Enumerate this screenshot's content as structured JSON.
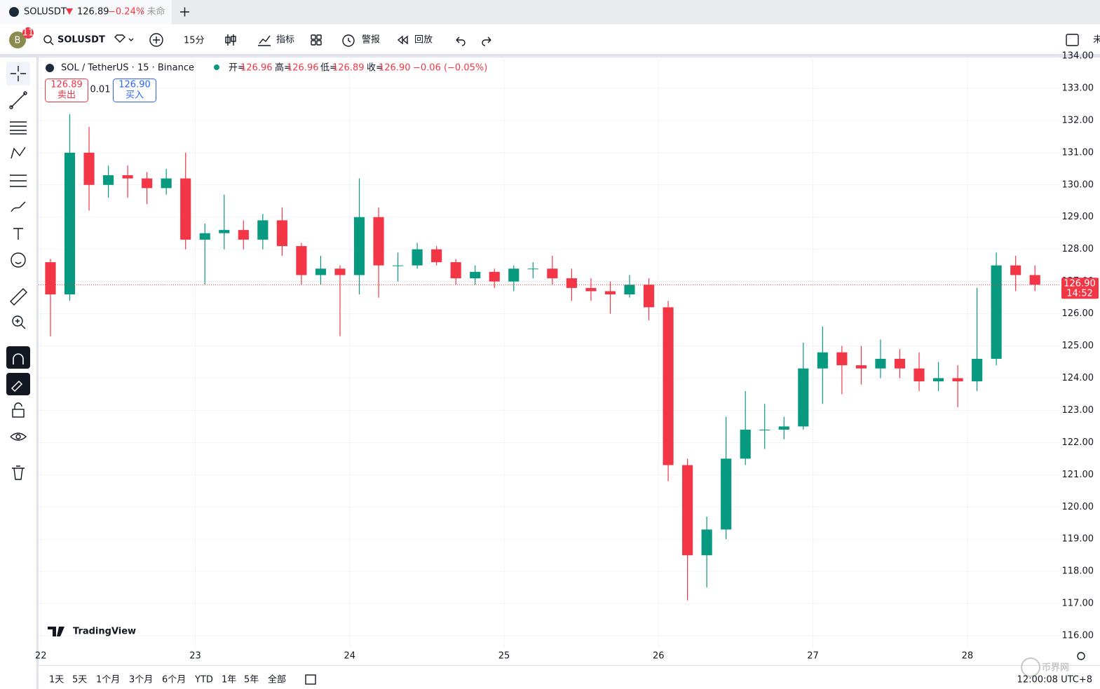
{
  "tab": {
    "symbol": "SOLUSDT",
    "price": "126.89",
    "change": "−0.24%",
    "title": "/ 未命"
  },
  "toolbar": {
    "avatar": "B",
    "badge": "11",
    "symbol": "SOLUSDT",
    "interval": "15分",
    "indicators": "指标",
    "alert": "警报",
    "replay": "回放",
    "right_text": "未"
  },
  "legend": {
    "title": "SOL / TetherUS · 15 · Binance",
    "open_label": "开=",
    "open": "126.96",
    "high_label": "高=",
    "high": "126.96",
    "low_label": "低=",
    "low": "126.89",
    "close_label": "收=",
    "close": "126.90",
    "change": "−0.06 (−0.05%)"
  },
  "trade": {
    "sell_price": "126.89",
    "sell": "卖出",
    "spread": "0.01",
    "buy_price": "126.90",
    "buy": "买入"
  },
  "watermark": "TradingView",
  "chart_data": {
    "type": "candlestick",
    "up_color": "#089981",
    "down_color": "#f23645",
    "grid": true,
    "x": [
      22.0625,
      22.1875,
      22.3125,
      22.4375,
      22.5625,
      22.6875,
      22.8125,
      22.9375,
      23.0625,
      23.1875,
      23.3125,
      23.4375,
      23.5625,
      23.6875,
      23.8125,
      23.9375,
      24.0625,
      24.1875,
      24.3125,
      24.4375,
      24.5625,
      24.6875,
      24.8125,
      24.9375,
      25.0625,
      25.1875,
      25.3125,
      25.4375,
      25.5625,
      25.6875,
      25.8125,
      25.9375,
      26.0625,
      26.1875,
      26.3125,
      26.4375,
      26.5625,
      26.6875,
      26.8125,
      26.9375,
      27.0625,
      27.1875,
      27.3125,
      27.4375,
      27.5625,
      27.6875,
      27.8125,
      27.9375,
      28.0625,
      28.1875,
      28.3125,
      28.4375
    ],
    "open": [
      127.6,
      126.6,
      131.0,
      130.0,
      130.3,
      130.2,
      129.9,
      130.2,
      128.3,
      128.5,
      128.6,
      128.3,
      128.9,
      128.1,
      127.2,
      127.4,
      127.2,
      129.0,
      127.5,
      127.5,
      128.0,
      127.6,
      127.1,
      127.3,
      127.0,
      127.4,
      127.4,
      127.1,
      126.8,
      126.7,
      126.6,
      126.9,
      126.2,
      121.3,
      118.5,
      119.3,
      121.5,
      122.4,
      122.4,
      122.5,
      124.3,
      124.8,
      124.4,
      124.3,
      124.6,
      124.3,
      123.9,
      124.0,
      123.9,
      124.6,
      127.5,
      127.2
    ],
    "high": [
      127.7,
      132.2,
      131.8,
      130.6,
      130.6,
      130.4,
      130.5,
      131.0,
      128.8,
      129.7,
      128.9,
      129.1,
      129.3,
      128.2,
      127.8,
      127.5,
      130.2,
      129.3,
      127.9,
      128.2,
      128.1,
      127.7,
      127.5,
      127.4,
      127.5,
      127.6,
      127.8,
      127.4,
      127.1,
      127.0,
      127.2,
      127.1,
      126.4,
      121.5,
      119.7,
      122.8,
      123.6,
      123.2,
      122.8,
      125.1,
      125.6,
      125.0,
      125.0,
      125.2,
      124.9,
      124.8,
      124.5,
      124.4,
      126.8,
      127.9,
      127.8,
      127.5
    ],
    "low": [
      125.3,
      126.4,
      129.2,
      129.6,
      129.6,
      129.4,
      129.7,
      128.0,
      126.9,
      128.0,
      128.0,
      128.0,
      127.8,
      126.9,
      126.9,
      125.3,
      126.6,
      126.5,
      127.0,
      127.4,
      127.5,
      126.9,
      126.9,
      126.8,
      126.7,
      127.1,
      126.9,
      126.4,
      126.4,
      126.0,
      126.5,
      125.8,
      120.8,
      117.1,
      117.5,
      119.0,
      121.3,
      121.8,
      122.1,
      122.4,
      123.2,
      123.5,
      123.8,
      124.0,
      124.0,
      123.6,
      123.6,
      123.1,
      123.6,
      124.4,
      126.7,
      126.7
    ],
    "close": [
      126.6,
      131.0,
      130.0,
      130.3,
      130.2,
      129.9,
      130.2,
      128.3,
      128.5,
      128.6,
      128.3,
      128.9,
      128.1,
      127.2,
      127.4,
      127.2,
      129.0,
      127.5,
      127.5,
      128.0,
      127.6,
      127.1,
      127.3,
      127.0,
      127.4,
      127.4,
      127.1,
      126.8,
      126.7,
      126.6,
      126.9,
      126.2,
      121.3,
      118.5,
      119.3,
      121.5,
      122.4,
      122.4,
      122.5,
      124.3,
      124.8,
      124.4,
      124.3,
      124.6,
      124.3,
      123.9,
      124.0,
      123.9,
      124.6,
      127.5,
      127.2,
      126.9
    ],
    "xlim": [
      21.99,
      28.6
    ],
    "xticks": [
      22,
      23,
      24,
      25,
      26,
      27,
      28
    ],
    "ylim": [
      115.61,
      134
    ],
    "yticks": [
      {
        "value": 116,
        "label": "116.00"
      },
      {
        "value": 117,
        "label": "117.00"
      },
      {
        "value": 118,
        "label": "118.00"
      },
      {
        "value": 119,
        "label": "119.00"
      },
      {
        "value": 120,
        "label": "120.00"
      },
      {
        "value": 121,
        "label": "121.00"
      },
      {
        "value": 122,
        "label": "122.00"
      },
      {
        "value": 123,
        "label": "123.00"
      },
      {
        "value": 124,
        "label": "124.00"
      },
      {
        "value": 125,
        "label": "125.00"
      },
      {
        "value": 126,
        "label": "126.00"
      },
      {
        "value": 127,
        "label": "127.00"
      },
      {
        "value": 128,
        "label": "128.00"
      },
      {
        "value": 129,
        "label": "129.00"
      },
      {
        "value": 130,
        "label": "130.00"
      },
      {
        "value": 131,
        "label": "131.00"
      },
      {
        "value": 132,
        "label": "132.00"
      },
      {
        "value": 133,
        "label": "133.00"
      },
      {
        "value": 134,
        "label": "134.00"
      }
    ],
    "price_line": {
      "value": 126.9,
      "label": "126.90",
      "countdown": "14:52"
    }
  },
  "bottom": {
    "ranges": [
      "1天",
      "5天",
      "1个月",
      "3个月",
      "6个月",
      "YTD",
      "1年",
      "5年",
      "全部"
    ],
    "time": "12:00:08 UTC+8",
    "site": "币界网"
  }
}
